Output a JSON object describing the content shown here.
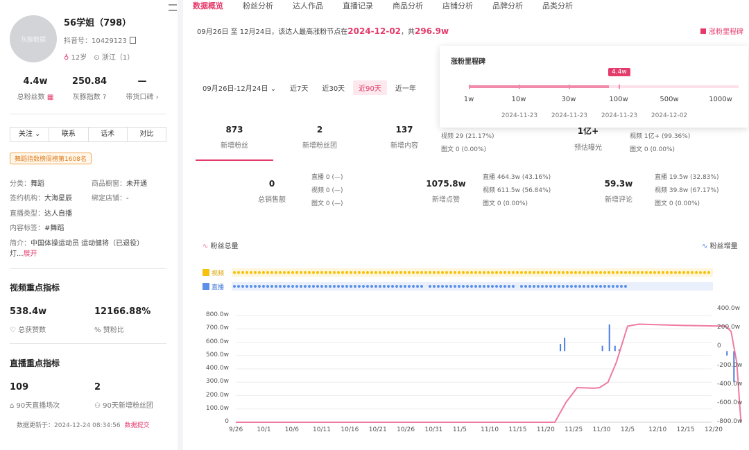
{
  "profile": {
    "name": "56学姐（798）",
    "douyin_label": "抖音号：",
    "douyin_id": "10429123",
    "age": "12岁",
    "location": "浙江（1）",
    "avatar_text": "灰豚数据"
  },
  "stats": [
    {
      "value": "4.4w",
      "label": "总粉丝数"
    },
    {
      "value": "250.84",
      "label": "灰豚指数"
    },
    {
      "value": "—",
      "label": "带货口碑"
    }
  ],
  "actions": [
    "关注",
    "联系",
    "话术",
    "对比"
  ],
  "rank_badge": "舞蹈指数榜周榜第1608名",
  "info": {
    "category_label": "分类：",
    "category": "舞蹈",
    "window_label": "商品橱窗：",
    "window": "未开通",
    "agency_label": "签约机构：",
    "agency": "大海星辰",
    "shop_label": "绑定店铺：",
    "shop": "-",
    "live_type_label": "直播类型：",
    "live_type": "达人自播",
    "tag_label": "内容标签：",
    "tag": "#舞蹈",
    "intro_label": "简介：",
    "intro": "中国体操运动员 运动健将（已退役）",
    "intro_more": "灯...",
    "expand": "展开"
  },
  "video_section": {
    "title": "视频重点指标",
    "items": [
      {
        "value": "538.4w",
        "label": "总获赞数"
      },
      {
        "value": "12166.88%",
        "label": "赞粉比"
      }
    ]
  },
  "live_section": {
    "title": "直播重点指标",
    "items": [
      {
        "value": "109",
        "label": "90天直播场次"
      },
      {
        "value": "2",
        "label": "90天新增粉丝团"
      }
    ]
  },
  "update": {
    "text": "数据更新于：2024-12-24 08:34:56",
    "link": "数据提交"
  },
  "tabs": [
    "数据概览",
    "粉丝分析",
    "达人作品",
    "直播记录",
    "商品分析",
    "店铺分析",
    "品牌分析",
    "品类分析"
  ],
  "note": {
    "prefix": "09月26日 至 12月24日，该达人最高涨粉节点在",
    "date": "2024-12-02",
    "mid": "，共",
    "amount": "296.9w"
  },
  "milestone_btn": "涨粉里程碑",
  "range": {
    "date_range": "09月26日-12月24日",
    "options": [
      "近7天",
      "近30天",
      "近90天",
      "近一年"
    ],
    "active": "近90天"
  },
  "milestone": {
    "title": "涨粉里程碑",
    "badge": "4.4w",
    "levels": [
      "1w",
      "10w",
      "30w",
      "100w",
      "500w",
      "1000w"
    ],
    "dates": [
      "2024-11-23",
      "2024-11-23",
      "2024-11-23",
      "2024-12-02"
    ],
    "progress_fraction": 0.52
  },
  "cards_row1": [
    {
      "value": "873",
      "label": "新增粉丝"
    },
    {
      "value": "2",
      "label": "新增粉丝团"
    },
    {
      "value": "137",
      "label": "新增内容",
      "subs": [
        "视频  29 (21.17%)",
        "图文  0 (0.00%)"
      ]
    },
    {
      "value": "1亿+",
      "label": "预估曝光",
      "subs": [
        "视频  1亿+ (99.36%)",
        "图文  0 (0.00%)"
      ]
    }
  ],
  "cards_row2": [
    {
      "value": "0",
      "label": "总销售额",
      "subs": [
        "直播  0 (—)",
        "视频  0 (—)",
        "图文  0 (—)"
      ]
    },
    {
      "value": "1075.8w",
      "label": "新增点赞",
      "subs": [
        "直播  464.3w (43.16%)",
        "视频  611.5w (56.84%)",
        "图文  0 (0.00%)"
      ]
    },
    {
      "value": "59.3w",
      "label": "新增评论",
      "subs": [
        "直播  19.5w (32.83%)",
        "视频  39.8w (67.17%)",
        "图文  0 (0.00%)"
      ]
    }
  ],
  "chart_data": {
    "type": "line",
    "legend": [
      "粉丝总量",
      "粉丝增量"
    ],
    "content_rows": [
      "视频",
      "直播"
    ],
    "x_ticks": [
      "9/26",
      "10/1",
      "10/6",
      "10/11",
      "10/16",
      "10/21",
      "10/26",
      "10/31",
      "11/5",
      "11/10",
      "11/15",
      "11/20",
      "11/25",
      "11/30",
      "12/5",
      "12/10",
      "12/15",
      "12/20"
    ],
    "y_left": {
      "ticks": [
        "800.0w",
        "700.0w",
        "600.0w",
        "500.0w",
        "400.0w",
        "300.0w",
        "200.0w",
        "100.0w",
        "0"
      ],
      "lim": [
        0,
        800
      ]
    },
    "y_right": {
      "ticks": [
        "400.0w",
        "200.0w",
        "0",
        "-200.0w",
        "-400.0w",
        "-600.0w",
        "-800.0w"
      ],
      "lim": [
        -800,
        400
      ]
    },
    "series": [
      {
        "name": "粉丝总量",
        "color": "#ef7aa0",
        "x_index": [
          0,
          11.4,
          11.8,
          12.2,
          12.8,
          13.0,
          13.3,
          13.6,
          14.0,
          14.4,
          16.0,
          17.5,
          17.7,
          17.9,
          18.05
        ],
        "values": [
          0,
          0,
          150,
          260,
          255,
          260,
          300,
          450,
          720,
          735,
          725,
          720,
          680,
          450,
          0
        ]
      },
      {
        "name": "粉丝增量",
        "color": "#4a7de0",
        "x_index": [
          11.6,
          11.75,
          13.1,
          13.35,
          13.55,
          13.7,
          17.55,
          17.8
        ],
        "values": [
          80,
          150,
          60,
          300,
          60,
          20,
          -50,
          -350
        ]
      }
    ],
    "video_marks_fraction": 1.0,
    "live_marks_fraction": 0.82
  },
  "colors": {
    "accent": "#e43b6b",
    "video": "#f6c20e",
    "live": "#5b8fe8"
  }
}
